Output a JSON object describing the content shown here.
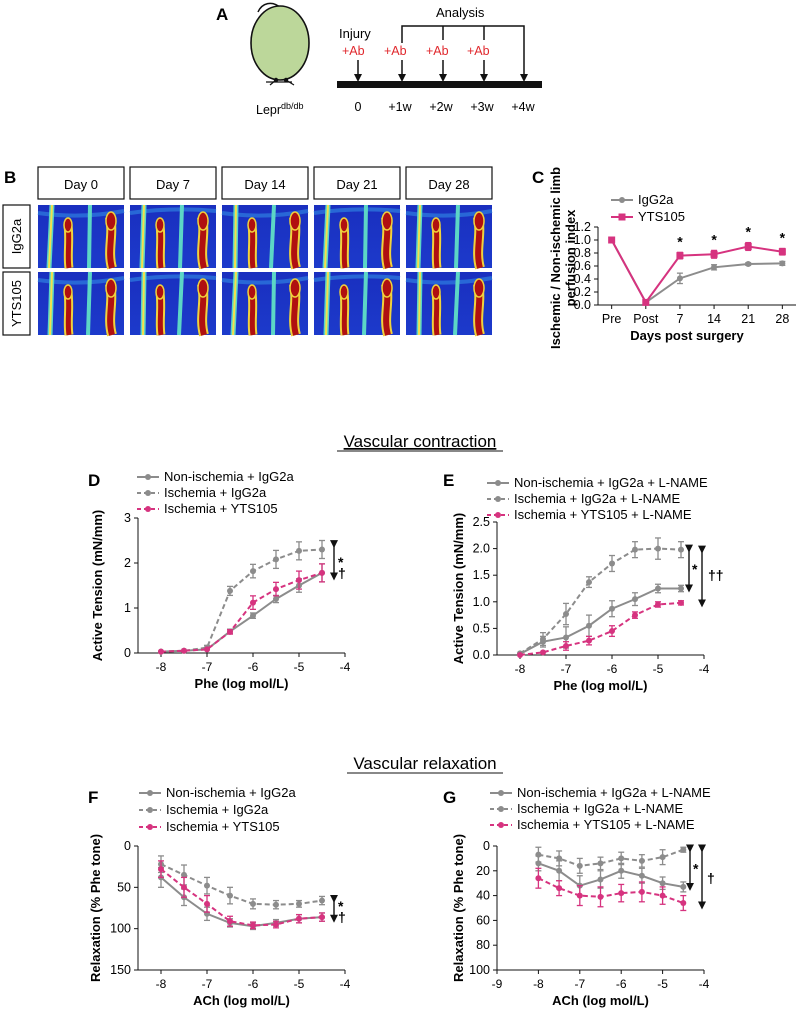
{
  "panel_letters": {
    "A": "A",
    "B": "B",
    "C": "C",
    "D": "D",
    "E": "E",
    "F": "F",
    "G": "G"
  },
  "colors": {
    "gray": "#8c8c8c",
    "magenta": "#d6337f",
    "black": "#111111",
    "mouse_fill": "#bcd79a",
    "red": "#e0282d"
  },
  "panelA": {
    "mouse_label": "Lepr",
    "mouse_label_sup": "db/db",
    "injury_label": "Injury",
    "analysis_label": "Analysis",
    "ab_label": "+Ab",
    "timeline_ticks": [
      "0",
      "+1w",
      "+2w",
      "+3w",
      "+4w"
    ]
  },
  "panelB": {
    "days": [
      "Day 0",
      "Day 7",
      "Day 14",
      "Day 21",
      "Day 28"
    ],
    "rows": [
      "IgG2a",
      "YTS105"
    ]
  },
  "section_titles": {
    "contraction": "Vascular contraction",
    "relaxation": "Vascular relaxation"
  },
  "chart_data": [
    {
      "panel": "C",
      "type": "line",
      "categories": [
        "Pre",
        "Post",
        "7",
        "14",
        "21",
        "28"
      ],
      "xlabel": "Days post surgery",
      "ylabel_lines": [
        "Ischemic / Non-ischemic limb",
        "perfusion index"
      ],
      "ylim": [
        0,
        1.2
      ],
      "yticks": [
        "0.0",
        "0.2",
        "0.4",
        "0.6",
        "0.8",
        "1.0",
        "1.2"
      ],
      "series": [
        {
          "name": "IgG2a",
          "color": "#8c8c8c",
          "marker": "circle",
          "dash": false,
          "values": [
            1.0,
            0.04,
            0.41,
            0.58,
            0.63,
            0.64
          ],
          "errors": [
            0,
            0,
            0.08,
            0.04,
            0.02,
            0.03
          ]
        },
        {
          "name": "YTS105",
          "color": "#d6337f",
          "marker": "square",
          "dash": false,
          "values": [
            1.0,
            0.04,
            0.76,
            0.78,
            0.9,
            0.82
          ],
          "errors": [
            0,
            0,
            0.05,
            0.06,
            0.06,
            0.05
          ]
        }
      ],
      "annotations": [
        {
          "text": "*",
          "category": "7"
        },
        {
          "text": "*",
          "category": "14"
        },
        {
          "text": "*",
          "category": "21"
        },
        {
          "text": "*",
          "category": "28"
        }
      ],
      "legend": "top-right"
    },
    {
      "panel": "D",
      "type": "line",
      "x": [
        -8,
        -7.5,
        -7,
        -6.5,
        -6,
        -5.5,
        -5,
        -4.5
      ],
      "xlim": [
        -8.5,
        -4
      ],
      "xticks": [
        "-8",
        "-7",
        "-6",
        "-5",
        "-4"
      ],
      "xlabel": "Phe (log mol/L)",
      "ylabel": "Active Tension (mN/mm)",
      "ylim": [
        0,
        3
      ],
      "yticks": [
        "0",
        "1",
        "2",
        "3"
      ],
      "series": [
        {
          "name": "Non-ischemia + IgG2a",
          "color": "#8c8c8c",
          "marker": "circle",
          "dash": false,
          "values": [
            0.03,
            0.05,
            0.08,
            0.48,
            0.83,
            1.2,
            1.5,
            1.78
          ],
          "errors": [
            0,
            0,
            0,
            0.05,
            0.06,
            0.08,
            0.15,
            0.2
          ]
        },
        {
          "name": "Ischemia + IgG2a",
          "color": "#8c8c8c",
          "marker": "circle",
          "dash": true,
          "values": [
            0.03,
            0.05,
            0.12,
            1.38,
            1.82,
            2.08,
            2.27,
            2.3
          ],
          "errors": [
            0,
            0,
            0.05,
            0.1,
            0.15,
            0.2,
            0.2,
            0.2
          ]
        },
        {
          "name": "Ischemia + YTS105",
          "color": "#d6337f",
          "marker": "circle",
          "dash": true,
          "values": [
            0.03,
            0.05,
            0.08,
            0.47,
            1.12,
            1.42,
            1.62,
            1.78
          ],
          "errors": [
            0,
            0,
            0,
            0.05,
            0.15,
            0.15,
            0.2,
            0.2
          ]
        }
      ],
      "annotations": [
        {
          "text": "*"
        },
        {
          "text": "†"
        }
      ],
      "legend": "top-left"
    },
    {
      "panel": "E",
      "type": "line",
      "x": [
        -8,
        -7.5,
        -7,
        -6.5,
        -6,
        -5.5,
        -5,
        -4.5
      ],
      "xlim": [
        -8.5,
        -4
      ],
      "xticks": [
        "-8",
        "-7",
        "-6",
        "-5",
        "-4"
      ],
      "xlabel": "Phe (log mol/L)",
      "ylabel": "Active Tension (mN/mm)",
      "ylim": [
        0,
        2.5
      ],
      "yticks": [
        "0.0",
        "0.5",
        "1.0",
        "1.5",
        "2.0",
        "2.5"
      ],
      "series": [
        {
          "name": "Non-ischemia + IgG2a + L-NAME",
          "color": "#8c8c8c",
          "marker": "circle",
          "dash": false,
          "values": [
            0.02,
            0.25,
            0.33,
            0.55,
            0.87,
            1.05,
            1.25,
            1.25
          ],
          "errors": [
            0,
            0.1,
            0.2,
            0.2,
            0.15,
            0.12,
            0.08,
            0.06
          ]
        },
        {
          "name": "Ischemia + IgG2a + L-NAME",
          "color": "#8c8c8c",
          "marker": "circle",
          "dash": true,
          "values": [
            0.03,
            0.3,
            0.77,
            1.37,
            1.72,
            1.98,
            2.0,
            1.98
          ],
          "errors": [
            0,
            0.12,
            0.2,
            0.1,
            0.15,
            0.15,
            0.2,
            0.15
          ]
        },
        {
          "name": "Ischemia + YTS105 + L-NAME",
          "color": "#d6337f",
          "marker": "circle",
          "dash": true,
          "values": [
            0.0,
            0.05,
            0.17,
            0.27,
            0.45,
            0.75,
            0.95,
            0.98
          ],
          "errors": [
            0,
            0,
            0.08,
            0.08,
            0.1,
            0.06,
            0.05,
            0.04
          ]
        }
      ],
      "annotations": [
        {
          "text": "*"
        },
        {
          "text": "††"
        }
      ],
      "legend": "top-left"
    },
    {
      "panel": "F",
      "type": "line",
      "x": [
        -8,
        -7.5,
        -7,
        -6.5,
        -6,
        -5.5,
        -5,
        -4.5
      ],
      "xlim": [
        -8.5,
        -4
      ],
      "xticks": [
        "-8",
        "-7",
        "-6",
        "-5",
        "-4"
      ],
      "xlabel": "ACh (log mol/L)",
      "ylabel": "Relaxation (% Phe tone)",
      "ylim": [
        0,
        150
      ],
      "yticks": [
        "0",
        "50",
        "100",
        "150"
      ],
      "inverted_y": true,
      "series": [
        {
          "name": "Non-ischemia + IgG2a",
          "color": "#8c8c8c",
          "marker": "circle",
          "dash": false,
          "values": [
            38,
            62,
            82,
            93,
            97,
            93,
            88,
            86
          ],
          "errors": [
            12,
            10,
            8,
            5,
            4,
            4,
            5,
            5
          ]
        },
        {
          "name": "Ischemia + IgG2a",
          "color": "#8c8c8c",
          "marker": "circle",
          "dash": true,
          "values": [
            22,
            35,
            48,
            60,
            70,
            71,
            70,
            66
          ],
          "errors": [
            10,
            12,
            10,
            10,
            6,
            5,
            4,
            5
          ]
        },
        {
          "name": "Ischemia + YTS105",
          "color": "#d6337f",
          "marker": "circle",
          "dash": true,
          "values": [
            28,
            50,
            70,
            91,
            96,
            95,
            88,
            86
          ],
          "errors": [
            10,
            12,
            10,
            6,
            4,
            4,
            5,
            5
          ]
        }
      ],
      "annotations": [
        {
          "text": "*"
        },
        {
          "text": "†"
        }
      ],
      "legend": "top-left"
    },
    {
      "panel": "G",
      "type": "line",
      "x": [
        -8,
        -7.5,
        -7,
        -6.5,
        -6,
        -5.5,
        -5,
        -4.5
      ],
      "xlim": [
        -9,
        -4
      ],
      "xticks": [
        "-9",
        "-8",
        "-7",
        "-6",
        "-5",
        "-4"
      ],
      "xlabel": "ACh (log mol/L)",
      "ylabel": "Relaxation (% Phe tone)",
      "ylim": [
        0,
        100
      ],
      "yticks": [
        "0",
        "20",
        "40",
        "60",
        "80",
        "100"
      ],
      "inverted_y": true,
      "series": [
        {
          "name": "Non-ischemia + IgG2a + L-NAME",
          "color": "#8c8c8c",
          "marker": "circle",
          "dash": false,
          "values": [
            14,
            20,
            32,
            27,
            20,
            24,
            30,
            33
          ],
          "errors": [
            6,
            8,
            8,
            7,
            6,
            6,
            5,
            4
          ]
        },
        {
          "name": "Ischemia + IgG2a + L-NAME",
          "color": "#8c8c8c",
          "marker": "circle",
          "dash": true,
          "values": [
            7,
            10,
            16,
            14,
            10,
            12,
            9,
            3
          ],
          "errors": [
            6,
            6,
            6,
            5,
            5,
            5,
            6,
            2
          ]
        },
        {
          "name": "Ischemia + YTS105 + L-NAME",
          "color": "#d6337f",
          "marker": "circle",
          "dash": true,
          "values": [
            26,
            34,
            40,
            41,
            38,
            37,
            40,
            46
          ],
          "errors": [
            8,
            6,
            8,
            8,
            7,
            8,
            7,
            6
          ]
        }
      ],
      "annotations": [
        {
          "text": "*"
        },
        {
          "text": "†"
        }
      ],
      "legend": "top-left"
    }
  ]
}
